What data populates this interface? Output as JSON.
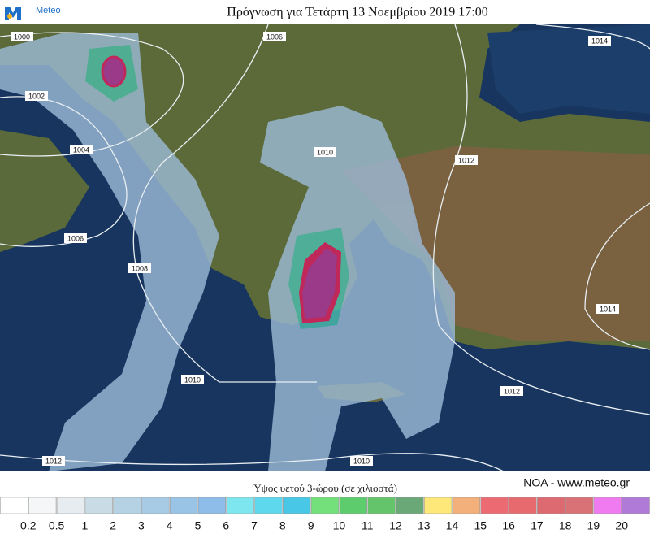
{
  "header": {
    "logo": "Meteo",
    "title": "Πρόγνωση για Τετάρτη 13 Νοεμβρίου 2019 17:00"
  },
  "map": {
    "isobar_labels": [
      1000,
      1006,
      1014,
      1002,
      1004,
      1010,
      1012,
      1006,
      1008,
      1014,
      1010,
      1012,
      1012,
      1010
    ]
  },
  "credit": "NOA - www.meteo.gr",
  "legend": {
    "title": "Ύψος υετού 3-ώρου (σε χιλιοστά)",
    "colors": [
      "#ffffff",
      "#f4f6f8",
      "#e6ecf0",
      "#c9dce6",
      "#b4d2e4",
      "#a7cbe4",
      "#9ac4e6",
      "#8dbde8",
      "#7ee6ee",
      "#5ed8ec",
      "#48c8e6",
      "#74e07c",
      "#5ccc6c",
      "#64c46c",
      "#6aa878",
      "#ffe87a",
      "#f4b07a",
      "#ec6a72",
      "#e66a6e",
      "#dc6a70",
      "#d87276",
      "#f07af0",
      "#b07ad8"
    ],
    "labels": [
      0.2,
      0.5,
      1,
      2,
      3,
      4,
      5,
      6,
      7,
      8,
      9,
      10,
      11,
      12,
      13,
      14,
      15,
      16,
      17,
      18,
      19,
      20
    ]
  }
}
